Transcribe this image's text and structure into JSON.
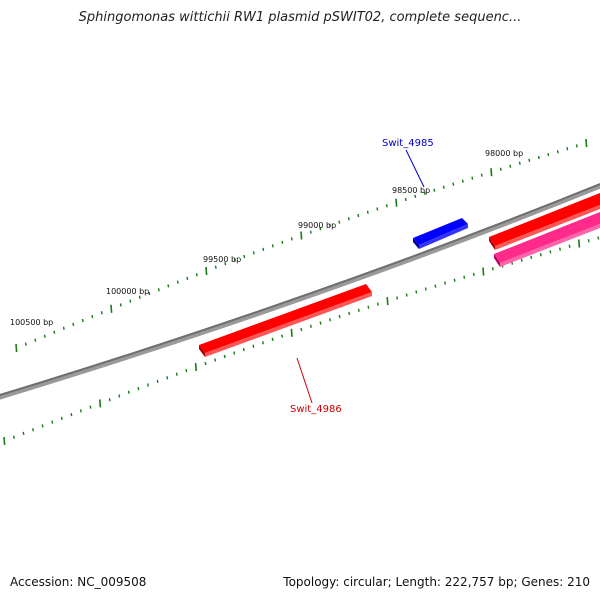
{
  "title": "Sphingomonas wittichii RW1 plasmid pSWIT02, complete sequenc...",
  "footer": {
    "accession": "Accession: NC_009508",
    "stats": "Topology: circular; Length: 222,757 bp; Genes: 210"
  },
  "ticks": [
    {
      "label": "100500 bp"
    },
    {
      "label": "100000 bp"
    },
    {
      "label": "99500 bp"
    },
    {
      "label": "99000 bp"
    },
    {
      "label": "98500 bp"
    },
    {
      "label": "98000 bp"
    }
  ],
  "genes": [
    {
      "name": "Swit_4985",
      "color": "#0000cc",
      "strand": "forward"
    },
    {
      "name": "Swit_4986",
      "color": "#cc0000",
      "strand": "reverse"
    },
    {
      "name": "",
      "color": "#ff0000",
      "strand": "forward"
    },
    {
      "name": "",
      "color": "#ff3399",
      "strand": "reverse"
    }
  ],
  "colors": {
    "backbone": "#7a7a7a",
    "ticks": "#1a7a1a",
    "forward_gene": "#ff0000",
    "reverse_gene": "#ff3399",
    "highlight_forward": "#0000ff",
    "highlight_reverse": "#ff0000"
  }
}
